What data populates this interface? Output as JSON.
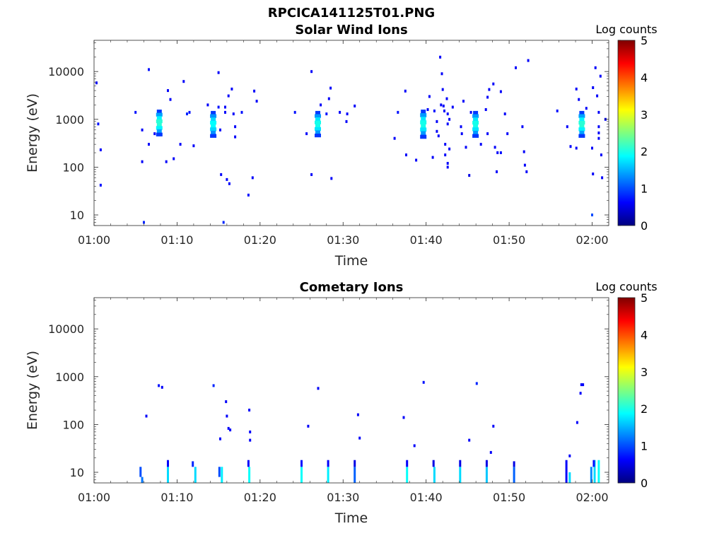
{
  "figure_title": "RPCICA141125T01.PNG",
  "colormap_stops": [
    "#00007f",
    "#0000ff",
    "#007fff",
    "#00ffff",
    "#7fff7f",
    "#ffff00",
    "#ff7f00",
    "#ff0000",
    "#7f0000"
  ],
  "chart_data": [
    {
      "type": "heatmap",
      "title": "Solar Wind Ions",
      "xlabel": "Time",
      "ylabel": "Energy (eV)",
      "x_ticks": [
        "01:00",
        "01:10",
        "01:20",
        "01:30",
        "01:40",
        "01:50",
        "02:00"
      ],
      "x_tick_minutes": [
        0,
        10,
        20,
        30,
        40,
        50,
        60
      ],
      "x_range_minutes": [
        0,
        62
      ],
      "y_scale": "log",
      "y_range": [
        6,
        45000
      ],
      "y_ticks": [
        "10",
        "100",
        "1000",
        "10000"
      ],
      "y_tick_values": [
        10,
        100,
        1000,
        10000
      ],
      "colorbar": {
        "label": "Log counts",
        "range": [
          0,
          5
        ],
        "ticks": [
          "0",
          "1",
          "2",
          "3",
          "4",
          "5"
        ]
      },
      "blobs": [
        {
          "t": 7.9,
          "e_low": 450,
          "e_high": 1600,
          "peak": 2.1
        },
        {
          "t": 14.4,
          "e_low": 420,
          "e_high": 1500,
          "peak": 1.9
        },
        {
          "t": 27.0,
          "e_low": 430,
          "e_high": 1500,
          "peak": 2.0
        },
        {
          "t": 39.7,
          "e_low": 400,
          "e_high": 1600,
          "peak": 2.0
        },
        {
          "t": 46.0,
          "e_low": 420,
          "e_high": 1500,
          "peak": 2.0
        },
        {
          "t": 58.8,
          "e_low": 420,
          "e_high": 1500,
          "peak": 2.1
        }
      ],
      "points": [
        {
          "t": 0.3,
          "e": 5800,
          "v": 0.6
        },
        {
          "t": 0.5,
          "e": 800,
          "v": 0.7
        },
        {
          "t": 0.8,
          "e": 230,
          "v": 0.6
        },
        {
          "t": 0.8,
          "e": 42,
          "v": 0.7
        },
        {
          "t": 5.0,
          "e": 1400,
          "v": 0.7
        },
        {
          "t": 5.8,
          "e": 600,
          "v": 0.6
        },
        {
          "t": 5.8,
          "e": 130,
          "v": 0.6
        },
        {
          "t": 6.0,
          "e": 7,
          "v": 0.8
        },
        {
          "t": 6.6,
          "e": 11000,
          "v": 0.7
        },
        {
          "t": 6.6,
          "e": 300,
          "v": 0.6
        },
        {
          "t": 7.3,
          "e": 500,
          "v": 0.6
        },
        {
          "t": 8.7,
          "e": 130,
          "v": 0.6
        },
        {
          "t": 8.9,
          "e": 4000,
          "v": 0.6
        },
        {
          "t": 9.2,
          "e": 2600,
          "v": 0.6
        },
        {
          "t": 9.6,
          "e": 150,
          "v": 0.6
        },
        {
          "t": 10.4,
          "e": 300,
          "v": 0.6
        },
        {
          "t": 10.8,
          "e": 6200,
          "v": 0.6
        },
        {
          "t": 11.2,
          "e": 1300,
          "v": 0.8
        },
        {
          "t": 11.5,
          "e": 1400,
          "v": 0.7
        },
        {
          "t": 12.0,
          "e": 280,
          "v": 0.6
        },
        {
          "t": 13.7,
          "e": 2000,
          "v": 0.6
        },
        {
          "t": 15.0,
          "e": 9500,
          "v": 0.6
        },
        {
          "t": 15.0,
          "e": 1800,
          "v": 0.7
        },
        {
          "t": 15.2,
          "e": 600,
          "v": 0.6
        },
        {
          "t": 15.3,
          "e": 70,
          "v": 0.6
        },
        {
          "t": 15.6,
          "e": 7,
          "v": 0.8
        },
        {
          "t": 15.8,
          "e": 1800,
          "v": 0.6
        },
        {
          "t": 15.8,
          "e": 1400,
          "v": 0.6
        },
        {
          "t": 16.0,
          "e": 55,
          "v": 0.6
        },
        {
          "t": 16.2,
          "e": 3100,
          "v": 0.6
        },
        {
          "t": 16.3,
          "e": 45,
          "v": 0.6
        },
        {
          "t": 16.6,
          "e": 4300,
          "v": 0.6
        },
        {
          "t": 16.8,
          "e": 1300,
          "v": 0.6
        },
        {
          "t": 17.0,
          "e": 700,
          "v": 0.6
        },
        {
          "t": 17.0,
          "e": 430,
          "v": 0.6
        },
        {
          "t": 17.8,
          "e": 1400,
          "v": 0.7
        },
        {
          "t": 18.6,
          "e": 26,
          "v": 0.7
        },
        {
          "t": 19.1,
          "e": 60,
          "v": 0.6
        },
        {
          "t": 19.3,
          "e": 3900,
          "v": 0.6
        },
        {
          "t": 19.6,
          "e": 2400,
          "v": 0.6
        },
        {
          "t": 24.2,
          "e": 1400,
          "v": 0.7
        },
        {
          "t": 25.6,
          "e": 500,
          "v": 0.6
        },
        {
          "t": 26.2,
          "e": 10000,
          "v": 0.6
        },
        {
          "t": 26.2,
          "e": 70,
          "v": 0.6
        },
        {
          "t": 27.3,
          "e": 2000,
          "v": 0.6
        },
        {
          "t": 28.0,
          "e": 1300,
          "v": 0.7
        },
        {
          "t": 28.3,
          "e": 2700,
          "v": 0.6
        },
        {
          "t": 28.5,
          "e": 4500,
          "v": 0.6
        },
        {
          "t": 28.6,
          "e": 58,
          "v": 0.6
        },
        {
          "t": 29.6,
          "e": 1400,
          "v": 0.6
        },
        {
          "t": 30.4,
          "e": 900,
          "v": 0.6
        },
        {
          "t": 30.5,
          "e": 1300,
          "v": 0.6
        },
        {
          "t": 31.4,
          "e": 1900,
          "v": 0.6
        },
        {
          "t": 36.2,
          "e": 400,
          "v": 0.6
        },
        {
          "t": 36.6,
          "e": 1400,
          "v": 0.7
        },
        {
          "t": 37.5,
          "e": 3900,
          "v": 0.6
        },
        {
          "t": 37.6,
          "e": 180,
          "v": 0.6
        },
        {
          "t": 38.8,
          "e": 140,
          "v": 0.6
        },
        {
          "t": 40.2,
          "e": 1600,
          "v": 0.6
        },
        {
          "t": 40.4,
          "e": 3000,
          "v": 0.6
        },
        {
          "t": 40.8,
          "e": 160,
          "v": 0.6
        },
        {
          "t": 41.0,
          "e": 1500,
          "v": 0.7
        },
        {
          "t": 41.3,
          "e": 900,
          "v": 0.6
        },
        {
          "t": 41.3,
          "e": 560,
          "v": 0.6
        },
        {
          "t": 41.5,
          "e": 450,
          "v": 0.6
        },
        {
          "t": 41.7,
          "e": 20000,
          "v": 0.6
        },
        {
          "t": 41.8,
          "e": 2000,
          "v": 0.6
        },
        {
          "t": 41.9,
          "e": 9000,
          "v": 0.6
        },
        {
          "t": 42.0,
          "e": 4200,
          "v": 0.6
        },
        {
          "t": 42.1,
          "e": 1900,
          "v": 0.6
        },
        {
          "t": 42.2,
          "e": 1500,
          "v": 0.6
        },
        {
          "t": 42.3,
          "e": 300,
          "v": 0.6
        },
        {
          "t": 42.3,
          "e": 180,
          "v": 0.6
        },
        {
          "t": 42.5,
          "e": 2700,
          "v": 0.6
        },
        {
          "t": 42.6,
          "e": 1300,
          "v": 0.6
        },
        {
          "t": 42.6,
          "e": 800,
          "v": 0.6
        },
        {
          "t": 42.6,
          "e": 120,
          "v": 0.6
        },
        {
          "t": 42.6,
          "e": 100,
          "v": 0.6
        },
        {
          "t": 42.8,
          "e": 1000,
          "v": 0.6
        },
        {
          "t": 42.8,
          "e": 240,
          "v": 0.6
        },
        {
          "t": 43.2,
          "e": 1800,
          "v": 0.6
        },
        {
          "t": 44.2,
          "e": 700,
          "v": 0.6
        },
        {
          "t": 44.3,
          "e": 500,
          "v": 0.6
        },
        {
          "t": 44.5,
          "e": 2400,
          "v": 0.6
        },
        {
          "t": 44.8,
          "e": 260,
          "v": 0.6
        },
        {
          "t": 45.2,
          "e": 67,
          "v": 0.5
        },
        {
          "t": 45.4,
          "e": 1400,
          "v": 0.6
        },
        {
          "t": 46.6,
          "e": 300,
          "v": 0.6
        },
        {
          "t": 47.2,
          "e": 1600,
          "v": 0.6
        },
        {
          "t": 47.4,
          "e": 2900,
          "v": 0.6
        },
        {
          "t": 47.4,
          "e": 500,
          "v": 0.6
        },
        {
          "t": 47.6,
          "e": 4200,
          "v": 0.6
        },
        {
          "t": 48.1,
          "e": 5500,
          "v": 0.6
        },
        {
          "t": 48.3,
          "e": 260,
          "v": 0.6
        },
        {
          "t": 48.5,
          "e": 80,
          "v": 0.6
        },
        {
          "t": 48.6,
          "e": 200,
          "v": 0.6
        },
        {
          "t": 49.0,
          "e": 200,
          "v": 0.7
        },
        {
          "t": 49.0,
          "e": 3800,
          "v": 0.6
        },
        {
          "t": 49.5,
          "e": 1300,
          "v": 0.6
        },
        {
          "t": 49.8,
          "e": 500,
          "v": 0.6
        },
        {
          "t": 50.8,
          "e": 12000,
          "v": 0.6
        },
        {
          "t": 51.6,
          "e": 700,
          "v": 0.6
        },
        {
          "t": 51.8,
          "e": 210,
          "v": 0.6
        },
        {
          "t": 51.9,
          "e": 110,
          "v": 0.6
        },
        {
          "t": 52.1,
          "e": 80,
          "v": 0.6
        },
        {
          "t": 52.3,
          "e": 17000,
          "v": 0.6
        },
        {
          "t": 55.8,
          "e": 1500,
          "v": 0.7
        },
        {
          "t": 57.0,
          "e": 700,
          "v": 0.6
        },
        {
          "t": 57.4,
          "e": 270,
          "v": 0.6
        },
        {
          "t": 58.1,
          "e": 250,
          "v": 0.6
        },
        {
          "t": 58.1,
          "e": 4300,
          "v": 0.6
        },
        {
          "t": 58.4,
          "e": 2600,
          "v": 0.6
        },
        {
          "t": 59.3,
          "e": 1700,
          "v": 0.6
        },
        {
          "t": 60.0,
          "e": 10,
          "v": 1.0
        },
        {
          "t": 60.0,
          "e": 250,
          "v": 0.6
        },
        {
          "t": 60.1,
          "e": 72,
          "v": 0.6
        },
        {
          "t": 60.1,
          "e": 4600,
          "v": 0.6
        },
        {
          "t": 60.4,
          "e": 12000,
          "v": 0.6
        },
        {
          "t": 60.6,
          "e": 3100,
          "v": 0.6
        },
        {
          "t": 60.8,
          "e": 1400,
          "v": 0.6
        },
        {
          "t": 60.8,
          "e": 700,
          "v": 0.6
        },
        {
          "t": 60.8,
          "e": 520,
          "v": 0.6
        },
        {
          "t": 60.8,
          "e": 400,
          "v": 0.6
        },
        {
          "t": 61.0,
          "e": 8000,
          "v": 0.6
        },
        {
          "t": 61.1,
          "e": 180,
          "v": 0.6
        },
        {
          "t": 61.2,
          "e": 60,
          "v": 0.6
        },
        {
          "t": 61.6,
          "e": 1000,
          "v": 0.6
        }
      ]
    },
    {
      "type": "heatmap",
      "title": "Cometary Ions",
      "xlabel": "Time",
      "ylabel": "Energy (eV)",
      "x_ticks": [
        "01:00",
        "01:10",
        "01:20",
        "01:30",
        "01:40",
        "01:50",
        "02:00"
      ],
      "x_tick_minutes": [
        0,
        10,
        20,
        30,
        40,
        50,
        60
      ],
      "x_range_minutes": [
        0,
        62
      ],
      "y_scale": "log",
      "y_range": [
        6,
        45000
      ],
      "y_ticks": [
        "10",
        "100",
        "1000",
        "10000"
      ],
      "y_tick_values": [
        10,
        100,
        1000,
        10000
      ],
      "colorbar": {
        "label": "Log counts",
        "range": [
          0,
          5
        ],
        "ticks": [
          "0",
          "1",
          "2",
          "3",
          "4",
          "5"
        ]
      },
      "columns": [
        {
          "t": 5.6,
          "e_low": 8,
          "e_high": 13,
          "v": 1.0
        },
        {
          "t": 5.8,
          "e_low": 6,
          "e_high": 8,
          "v": 1.2
        },
        {
          "t": 8.9,
          "e_low": 6,
          "e_high": 13,
          "v": 1.7
        },
        {
          "t": 8.9,
          "e_low": 13,
          "e_high": 18,
          "v": 0.6
        },
        {
          "t": 12.2,
          "e_low": 6,
          "e_high": 13,
          "v": 1.7
        },
        {
          "t": 11.9,
          "e_low": 13,
          "e_high": 17,
          "v": 0.8
        },
        {
          "t": 15.4,
          "e_low": 6,
          "e_high": 13,
          "v": 1.8
        },
        {
          "t": 15.1,
          "e_low": 8,
          "e_high": 13,
          "v": 1.0
        },
        {
          "t": 18.7,
          "e_low": 6,
          "e_high": 13,
          "v": 1.9
        },
        {
          "t": 18.6,
          "e_low": 13,
          "e_high": 18,
          "v": 0.6
        },
        {
          "t": 25.0,
          "e_low": 6,
          "e_high": 13,
          "v": 1.9
        },
        {
          "t": 25.0,
          "e_low": 13,
          "e_high": 18,
          "v": 0.7
        },
        {
          "t": 28.2,
          "e_low": 6,
          "e_high": 13,
          "v": 1.8
        },
        {
          "t": 28.2,
          "e_low": 13,
          "e_high": 18,
          "v": 0.6
        },
        {
          "t": 31.4,
          "e_low": 6,
          "e_high": 13,
          "v": 1.1
        },
        {
          "t": 31.4,
          "e_low": 13,
          "e_high": 18,
          "v": 0.5
        },
        {
          "t": 37.7,
          "e_low": 6,
          "e_high": 13,
          "v": 1.9
        },
        {
          "t": 37.7,
          "e_low": 13,
          "e_high": 18,
          "v": 0.6
        },
        {
          "t": 41.0,
          "e_low": 6,
          "e_high": 13,
          "v": 1.7
        },
        {
          "t": 40.9,
          "e_low": 13,
          "e_high": 18,
          "v": 0.5
        },
        {
          "t": 44.1,
          "e_low": 6,
          "e_high": 13,
          "v": 1.7
        },
        {
          "t": 44.1,
          "e_low": 13,
          "e_high": 18,
          "v": 0.5
        },
        {
          "t": 47.3,
          "e_low": 6,
          "e_high": 13,
          "v": 1.6
        },
        {
          "t": 47.3,
          "e_low": 13,
          "e_high": 18,
          "v": 0.5
        },
        {
          "t": 50.6,
          "e_low": 6,
          "e_high": 13,
          "v": 1.1
        },
        {
          "t": 50.6,
          "e_low": 13,
          "e_high": 17,
          "v": 0.5
        },
        {
          "t": 56.9,
          "e_low": 6,
          "e_high": 18,
          "v": 0.6
        },
        {
          "t": 57.3,
          "e_low": 6,
          "e_high": 10,
          "v": 1.7
        },
        {
          "t": 59.9,
          "e_low": 6,
          "e_high": 13,
          "v": 1.3
        },
        {
          "t": 60.3,
          "e_low": 6,
          "e_high": 18,
          "v": 1.7
        },
        {
          "t": 60.8,
          "e_low": 6,
          "e_high": 18,
          "v": 1.9
        },
        {
          "t": 60.2,
          "e_low": 13,
          "e_high": 18,
          "v": 0.7
        }
      ],
      "points": [
        {
          "t": 6.3,
          "e": 150,
          "v": 0.6
        },
        {
          "t": 7.8,
          "e": 650,
          "v": 0.7
        },
        {
          "t": 8.2,
          "e": 600,
          "v": 0.6
        },
        {
          "t": 14.4,
          "e": 650,
          "v": 0.8
        },
        {
          "t": 15.2,
          "e": 50,
          "v": 0.6
        },
        {
          "t": 15.9,
          "e": 300,
          "v": 0.6
        },
        {
          "t": 16.0,
          "e": 150,
          "v": 0.6
        },
        {
          "t": 16.2,
          "e": 83,
          "v": 0.6
        },
        {
          "t": 16.4,
          "e": 77,
          "v": 0.6
        },
        {
          "t": 18.7,
          "e": 200,
          "v": 0.6
        },
        {
          "t": 18.8,
          "e": 70,
          "v": 0.6
        },
        {
          "t": 18.8,
          "e": 47,
          "v": 0.6
        },
        {
          "t": 25.8,
          "e": 92,
          "v": 0.6
        },
        {
          "t": 27.0,
          "e": 570,
          "v": 0.6
        },
        {
          "t": 31.8,
          "e": 160,
          "v": 0.6
        },
        {
          "t": 32.0,
          "e": 52,
          "v": 0.6
        },
        {
          "t": 37.3,
          "e": 140,
          "v": 0.6
        },
        {
          "t": 38.6,
          "e": 36,
          "v": 0.6
        },
        {
          "t": 39.7,
          "e": 760,
          "v": 0.7
        },
        {
          "t": 45.2,
          "e": 47,
          "v": 0.6
        },
        {
          "t": 46.1,
          "e": 720,
          "v": 0.8
        },
        {
          "t": 47.8,
          "e": 26,
          "v": 0.6
        },
        {
          "t": 48.1,
          "e": 92,
          "v": 0.6
        },
        {
          "t": 57.3,
          "e": 22,
          "v": 0.6
        },
        {
          "t": 58.2,
          "e": 110,
          "v": 0.6
        },
        {
          "t": 58.7,
          "e": 680,
          "v": 0.6
        },
        {
          "t": 58.9,
          "e": 680,
          "v": 0.6
        },
        {
          "t": 58.6,
          "e": 450,
          "v": 0.6
        }
      ]
    }
  ]
}
